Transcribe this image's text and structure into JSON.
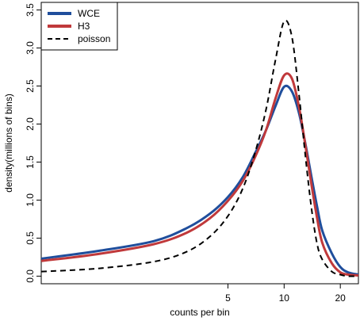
{
  "chart_data": {
    "type": "line",
    "title": "",
    "xlabel": "counts per bin",
    "ylabel": "density(millions of bins)",
    "xlim": [
      0.5,
      25
    ],
    "x_scale": "log",
    "ylim": [
      -0.1,
      3.6
    ],
    "x_ticks": [
      5,
      10,
      20
    ],
    "x_tick_labels": [
      "5",
      "10",
      "20"
    ],
    "y_ticks": [
      0.0,
      0.5,
      1.0,
      1.5,
      2.0,
      2.5,
      3.0,
      3.5
    ],
    "y_tick_labels": [
      "0.0",
      "0.5",
      "1.0",
      "1.5",
      "2.0",
      "2.5",
      "3.0",
      "3.5"
    ],
    "grid": false,
    "legend_position": "top-left",
    "series": [
      {
        "name": "WCE",
        "color": "#1f4e9c",
        "line_style": "solid",
        "x": [
          0.5,
          1,
          2,
          3,
          4,
          5,
          6,
          7,
          8,
          9,
          10,
          11,
          12,
          13,
          14,
          15,
          16,
          18,
          20,
          22,
          25
        ],
        "y": [
          0.23,
          0.33,
          0.46,
          0.63,
          0.82,
          1.04,
          1.3,
          1.62,
          1.92,
          2.24,
          2.49,
          2.43,
          2.15,
          1.74,
          1.31,
          0.92,
          0.6,
          0.3,
          0.12,
          0.05,
          0.02
        ]
      },
      {
        "name": "H3",
        "color": "#c0393b",
        "line_style": "solid",
        "x": [
          0.5,
          1,
          2,
          3,
          4,
          5,
          6,
          7,
          8,
          9,
          10,
          11,
          12,
          13,
          14,
          15,
          16,
          18,
          20,
          22,
          25
        ],
        "y": [
          0.2,
          0.29,
          0.42,
          0.57,
          0.76,
          0.99,
          1.25,
          1.57,
          1.92,
          2.34,
          2.64,
          2.6,
          2.23,
          1.72,
          1.21,
          0.77,
          0.44,
          0.17,
          0.05,
          0.02,
          0.01
        ]
      },
      {
        "name": "poisson",
        "color": "#000000",
        "line_style": "dashed",
        "x": [
          0.5,
          1,
          2,
          3,
          4,
          5,
          6,
          7,
          8,
          9,
          10,
          11,
          12,
          13,
          14,
          15,
          16,
          18,
          20,
          22,
          25
        ],
        "y": [
          0.06,
          0.1,
          0.19,
          0.32,
          0.52,
          0.79,
          1.15,
          1.63,
          2.19,
          2.85,
          3.35,
          3.15,
          2.4,
          1.58,
          0.9,
          0.43,
          0.22,
          0.06,
          0.02,
          0.0,
          0.0
        ]
      }
    ]
  }
}
